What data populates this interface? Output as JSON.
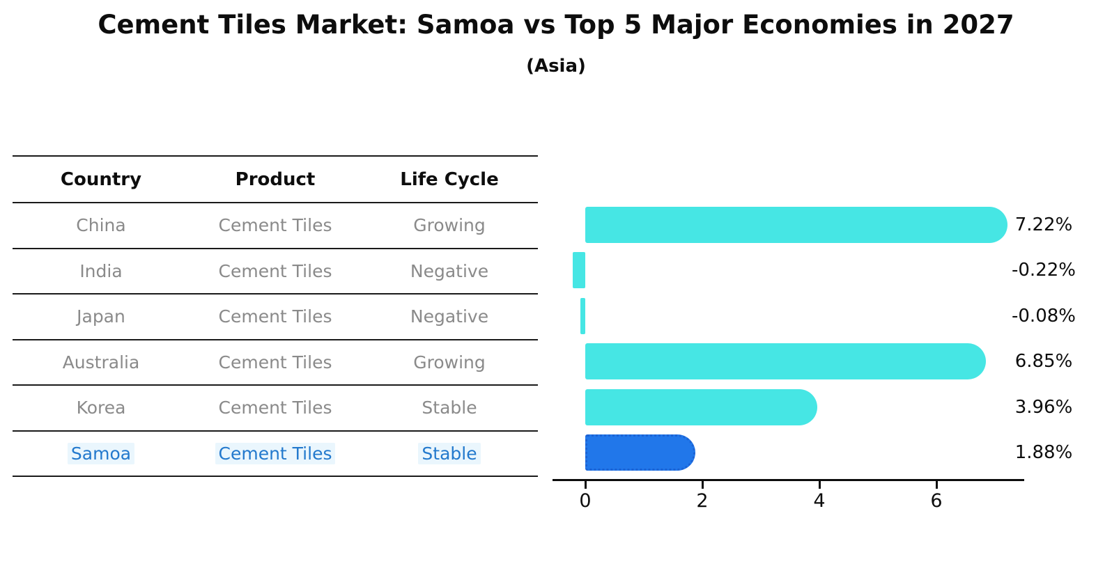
{
  "title": "Cement Tiles Market: Samoa vs Top 5 Major Economies in 2027",
  "subtitle": "(Asia)",
  "table": {
    "headers": [
      "Country",
      "Product",
      "Life Cycle"
    ],
    "rows": [
      {
        "country": "China",
        "product": "Cement Tiles",
        "life_cycle": "Growing"
      },
      {
        "country": "India",
        "product": "Cement Tiles",
        "life_cycle": "Negative"
      },
      {
        "country": "Japan",
        "product": "Cement Tiles",
        "life_cycle": "Negative"
      },
      {
        "country": "Australia",
        "product": "Cement Tiles",
        "life_cycle": "Growing"
      },
      {
        "country": "Korea",
        "product": "Cement Tiles",
        "life_cycle": "Stable"
      },
      {
        "country": "Samoa",
        "product": "Cement Tiles",
        "life_cycle": "Stable"
      }
    ],
    "highlighted_row": "Samoa"
  },
  "chart_data": {
    "type": "bar",
    "orientation": "horizontal",
    "categories": [
      "China",
      "India",
      "Japan",
      "Australia",
      "Korea",
      "Samoa"
    ],
    "values": [
      7.22,
      -0.22,
      -0.08,
      6.85,
      3.96,
      1.88
    ],
    "value_labels": [
      "7.22%",
      "-0.22%",
      "-0.08%",
      "6.85%",
      "3.96%",
      "1.88%"
    ],
    "x_ticks": [
      "0",
      "2",
      "4",
      "6"
    ],
    "xlim": [
      -0.56,
      7.5
    ],
    "grid": false,
    "legend": "none",
    "bar_color": "#46E6E4",
    "highlight_bar_color": "#2177EA",
    "highlight_border_color": "#1C63D4",
    "highlight_index": 5
  },
  "colors": {
    "title_text": "#0d0d0d",
    "muted_text": "#8a8a8a",
    "highlight_text": "#2379CD",
    "highlight_text_bg": "#EAF6FD",
    "axis": "#0d0d0d"
  }
}
